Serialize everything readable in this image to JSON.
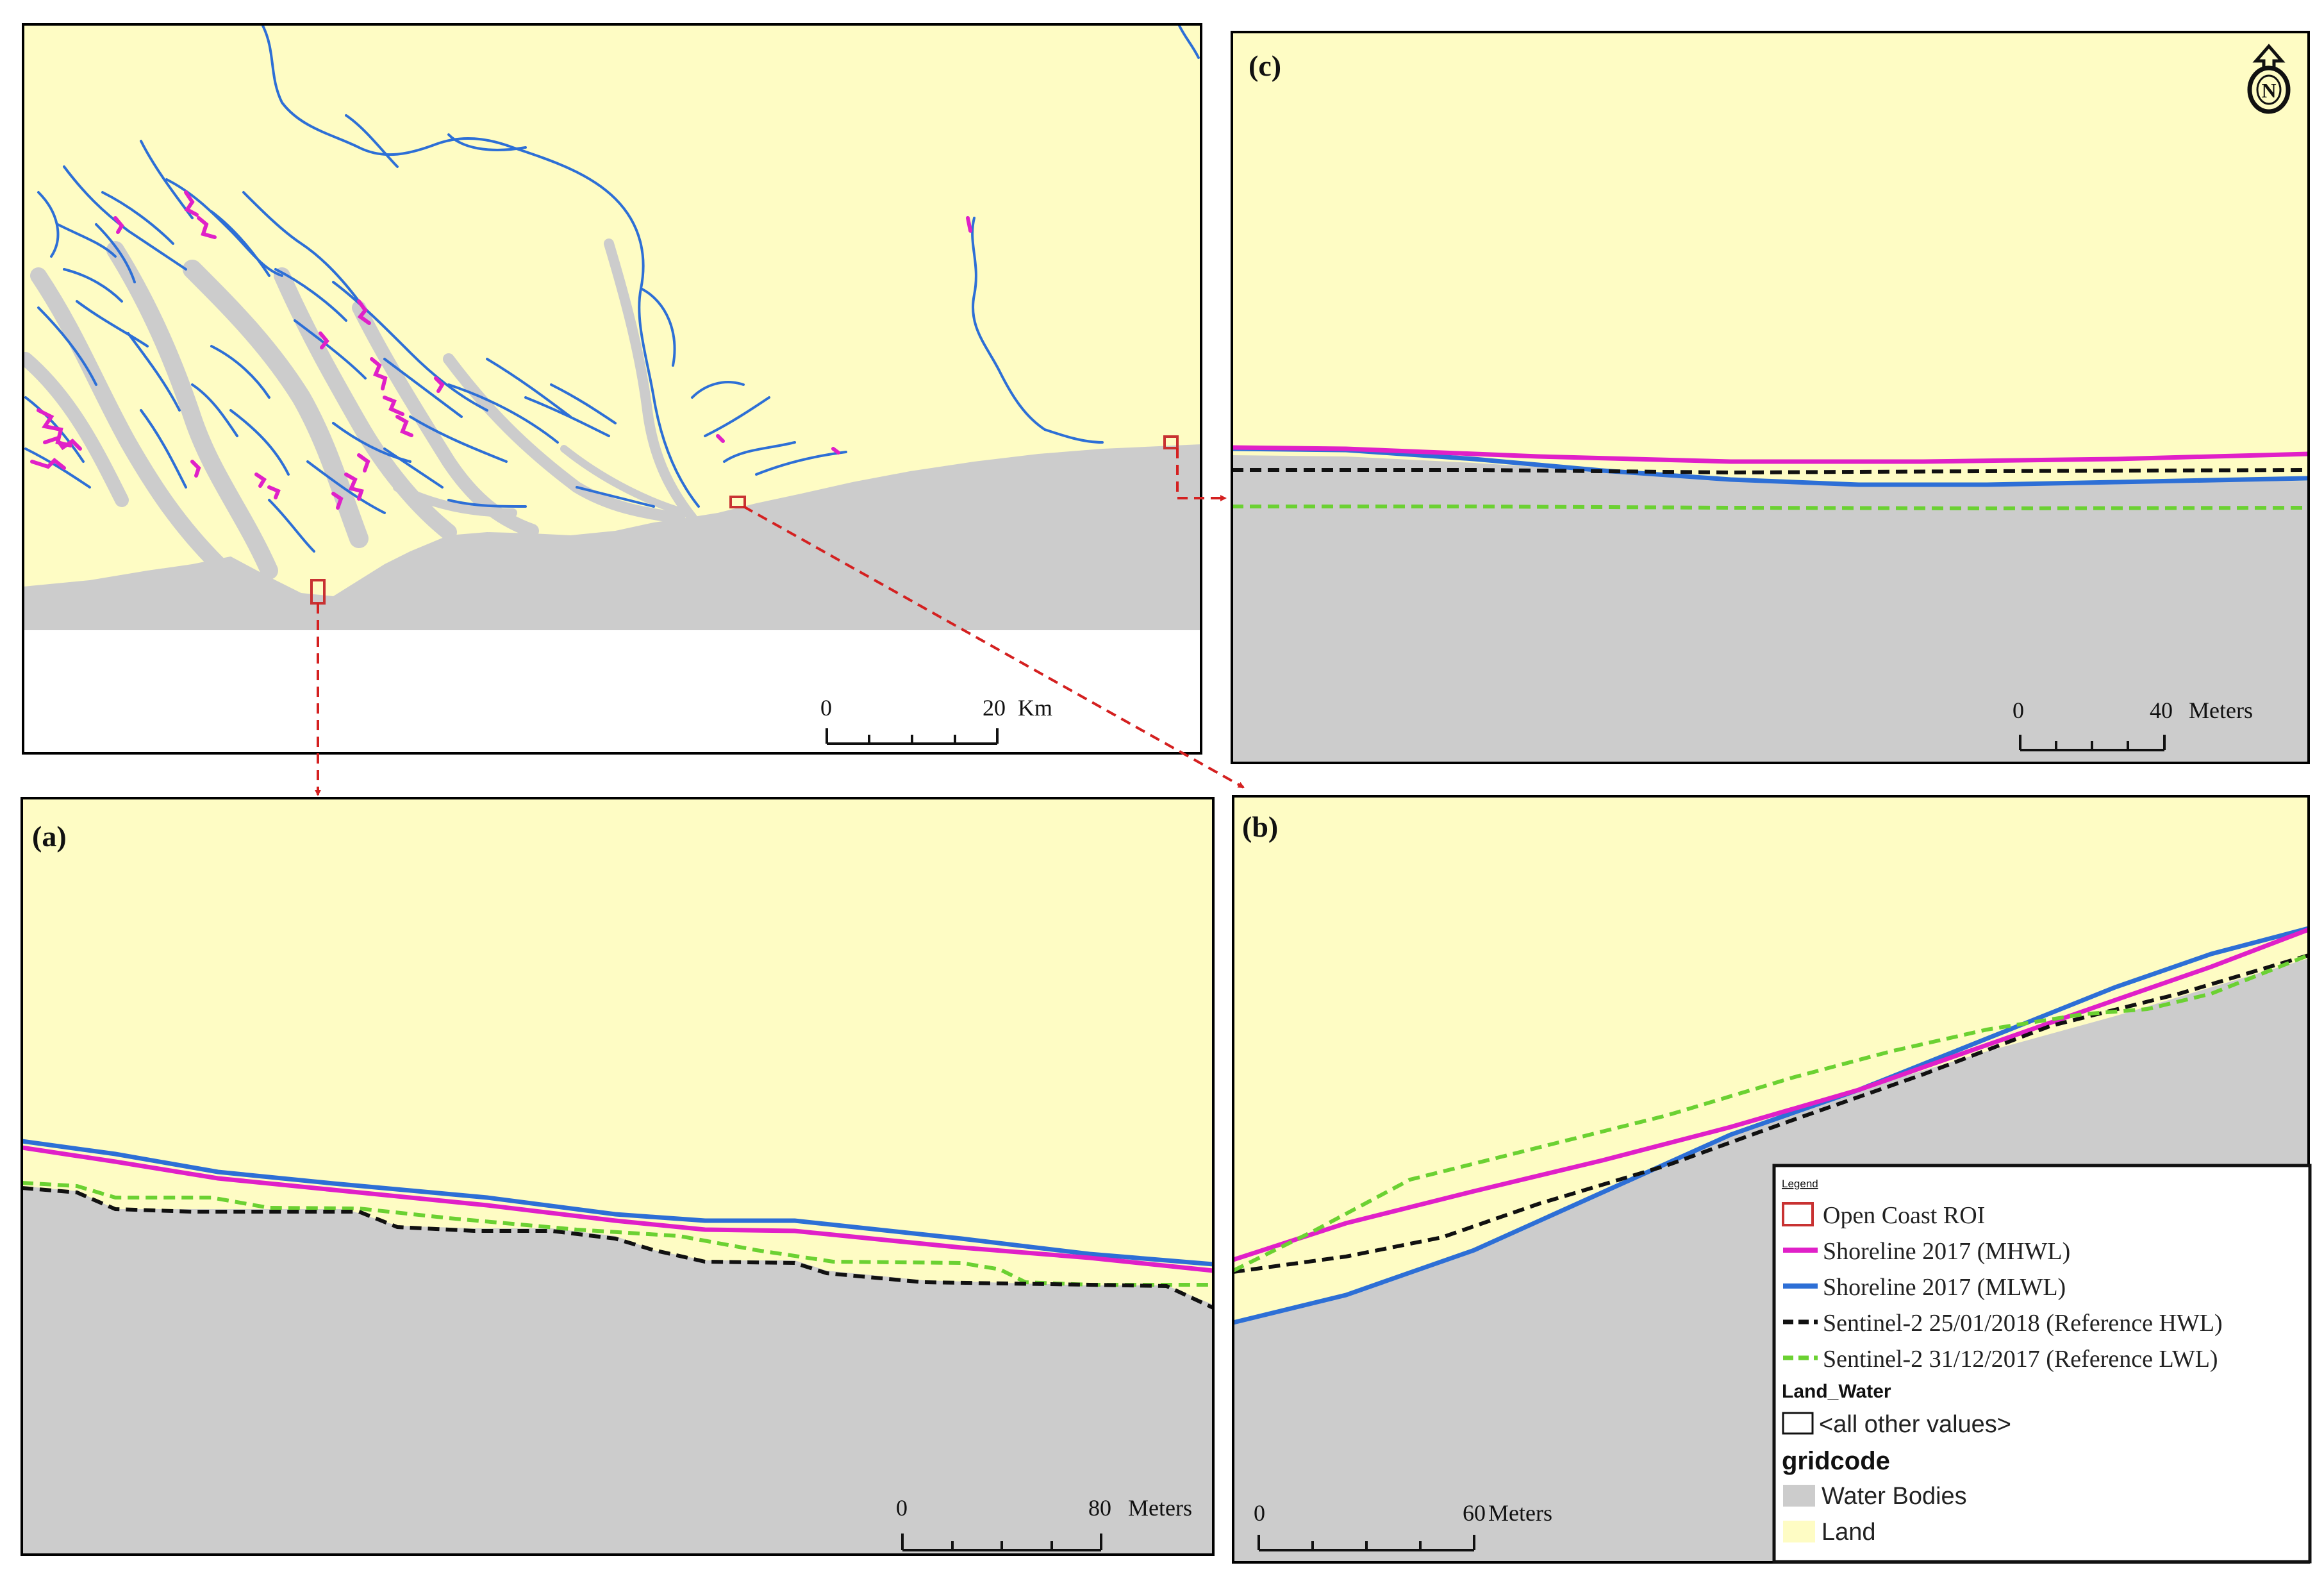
{
  "colors": {
    "land": "#fefcc4",
    "water": "#cccccc",
    "mhwl": "#e020c8",
    "mlwl": "#2d6fd6",
    "hwl": "#111111",
    "lwl": "#6bd132",
    "roi": "#c83232",
    "arrow": "#d42020"
  },
  "overview": {
    "scale": {
      "start": "0",
      "end": "20",
      "unit": "Km"
    }
  },
  "panel_a": {
    "label": "(a)",
    "scale": {
      "start": "0",
      "end": "80",
      "unit": "Meters"
    }
  },
  "panel_b": {
    "label": "(b)",
    "scale": {
      "start": "0",
      "end": "60",
      "unit": "Meters"
    }
  },
  "panel_c": {
    "label": "(c)",
    "scale": {
      "start": "0",
      "end": "40",
      "unit": "Meters"
    },
    "north_arrow": {
      "icon": "north-arrow-icon",
      "letter": "N"
    }
  },
  "legend": {
    "title": "Legend",
    "items": [
      {
        "label": "Open Coast ROI",
        "symbol": "roi-box"
      },
      {
        "label": "Shoreline 2017 (MHWL)",
        "symbol": "magenta-line"
      },
      {
        "label": "Shoreline 2017 (MLWL)",
        "symbol": "blue-line"
      },
      {
        "label": "Sentinel-2 25/01/2018 (Reference HWL)",
        "symbol": "black-dashed-line"
      },
      {
        "label": "Sentinel-2 31/12/2017 (Reference LWL)",
        "symbol": "green-dashed-line"
      }
    ],
    "land_water_header": "Land_Water",
    "other_values": "<all other values>",
    "gridcode_header": "gridcode",
    "gridcode_items": [
      {
        "label": "Water Bodies",
        "symbol": "water-swatch"
      },
      {
        "label": "Land",
        "symbol": "land-swatch"
      }
    ]
  }
}
